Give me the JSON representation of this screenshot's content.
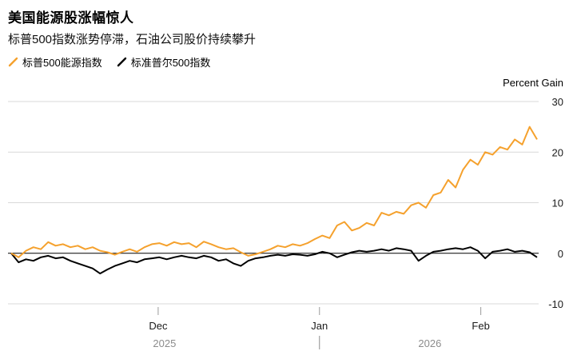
{
  "header": {
    "title": "美国能源股涨幅惊人",
    "subtitle": "标普500指数涨势停滞，石油公司股价持续攀升"
  },
  "legend": {
    "items": [
      {
        "label": "标普500能源指数",
        "color": "#F5A12D"
      },
      {
        "label": "标准普尔500指数",
        "color": "#000000"
      }
    ]
  },
  "axis": {
    "right_title": "Percent Gain"
  },
  "chart_data": {
    "type": "line",
    "title": "美国能源股涨幅惊人",
    "subtitle": "标普500指数涨势停滞，石油公司股价持续攀升",
    "ylabel": "Percent Gain",
    "ylim": [
      -10,
      30
    ],
    "yticks": [
      30,
      20,
      10,
      0,
      -10
    ],
    "grid": true,
    "legend_position": "top-left",
    "x_ticks": [
      {
        "label": "Dec",
        "pos": 0.283
      },
      {
        "label": "Jan",
        "pos": 0.587
      },
      {
        "label": "Feb",
        "pos": 0.891
      }
    ],
    "year_labels": [
      {
        "label": "2025",
        "pos": 0.295
      },
      {
        "label": "2026",
        "pos": 0.795
      }
    ],
    "year_divider_pos": 0.587,
    "series": [
      {
        "name": "标普500能源指数",
        "color": "#F5A12D",
        "values": [
          0,
          -0.8,
          0.5,
          1.2,
          0.8,
          2.2,
          1.5,
          1.8,
          1.2,
          1.5,
          0.8,
          1.2,
          0.5,
          0.2,
          -0.3,
          0.3,
          0.8,
          0.3,
          1.2,
          1.8,
          2.0,
          1.5,
          2.2,
          1.8,
          2.0,
          1.2,
          2.3,
          1.8,
          1.2,
          0.8,
          1.0,
          0.2,
          -0.5,
          -0.2,
          0.3,
          0.8,
          1.5,
          1.2,
          1.8,
          1.5,
          2.0,
          2.8,
          3.5,
          3.0,
          5.5,
          6.2,
          4.5,
          5.0,
          6.0,
          5.5,
          8.0,
          7.5,
          8.2,
          7.8,
          9.5,
          10.0,
          9.0,
          11.5,
          12.0,
          14.5,
          13.0,
          16.5,
          18.5,
          17.5,
          20.0,
          19.5,
          21.0,
          20.5,
          22.5,
          21.5,
          25.0,
          22.5
        ]
      },
      {
        "name": "标准普尔500指数",
        "color": "#000000",
        "values": [
          0,
          -1.8,
          -1.2,
          -1.5,
          -0.8,
          -0.5,
          -1.0,
          -0.8,
          -1.5,
          -2.0,
          -2.5,
          -3.0,
          -4.0,
          -3.2,
          -2.5,
          -2.0,
          -1.5,
          -1.8,
          -1.2,
          -1.0,
          -0.8,
          -1.2,
          -0.8,
          -0.5,
          -0.8,
          -1.0,
          -0.5,
          -0.8,
          -1.5,
          -1.2,
          -2.0,
          -2.5,
          -1.5,
          -1.0,
          -0.8,
          -0.5,
          -0.3,
          -0.5,
          -0.2,
          -0.3,
          -0.5,
          -0.2,
          0.3,
          0.0,
          -0.8,
          -0.3,
          0.2,
          0.5,
          0.3,
          0.5,
          0.8,
          0.5,
          1.0,
          0.8,
          0.5,
          -1.5,
          -0.5,
          0.3,
          0.5,
          0.8,
          1.0,
          0.8,
          1.2,
          0.5,
          -1.0,
          0.3,
          0.5,
          0.8,
          0.3,
          0.5,
          0.2,
          -0.8
        ]
      }
    ]
  }
}
